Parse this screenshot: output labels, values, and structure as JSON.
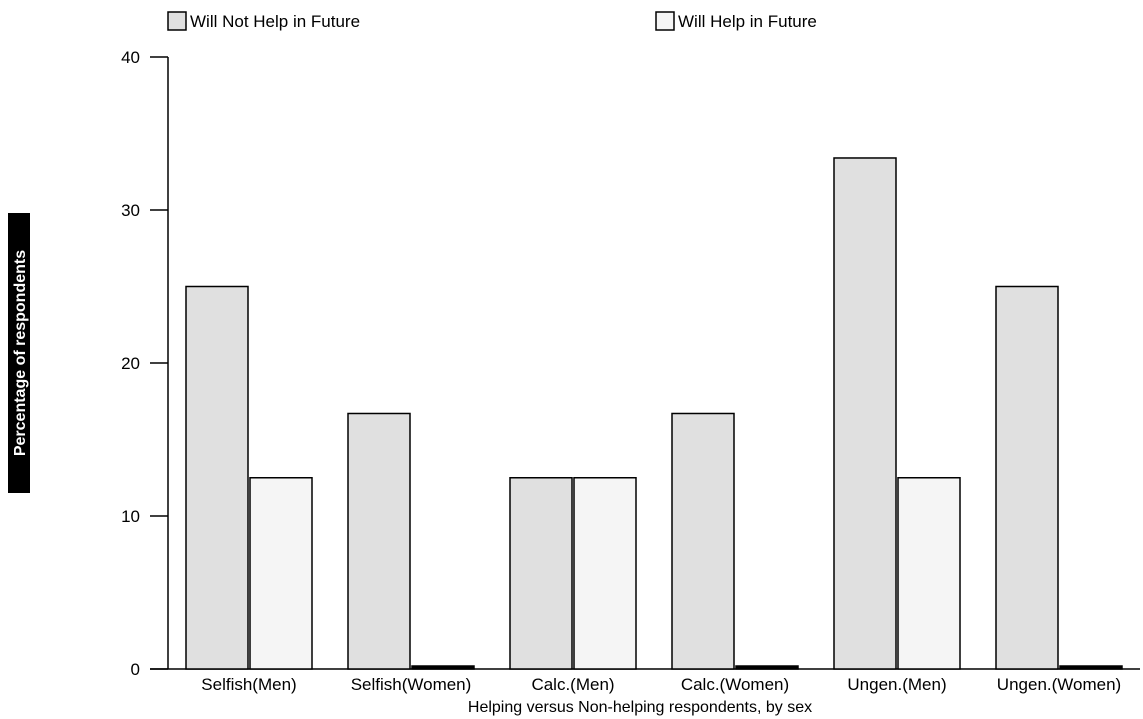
{
  "chart_data": {
    "type": "bar",
    "categories": [
      "Selfish(Men)",
      "Selfish(Women)",
      "Calc.(Men)",
      "Calc.(Women)",
      "Ungen.(Men)",
      "Ungen.(Women)"
    ],
    "series": [
      {
        "name": "Will Not Help in Future",
        "values": [
          25,
          16.7,
          12.5,
          16.7,
          33.4,
          25
        ],
        "color": "#e0e0e0"
      },
      {
        "name": "Will Help in Future",
        "values": [
          12.5,
          0,
          12.5,
          0,
          12.5,
          0
        ],
        "color": "#f5f5f5"
      }
    ],
    "xlabel": "Helping versus Non-helping respondents, by sex",
    "ylabel": "Percentage of respondents",
    "ylim": [
      0,
      40
    ],
    "yticks": [
      "0",
      "10",
      "20",
      "30",
      "40"
    ],
    "yticks_values": [
      0,
      10,
      20,
      30,
      40
    ],
    "grid": false,
    "legend": "top",
    "ylabel_background": "#000000",
    "bar_outline_color": "#000000"
  }
}
